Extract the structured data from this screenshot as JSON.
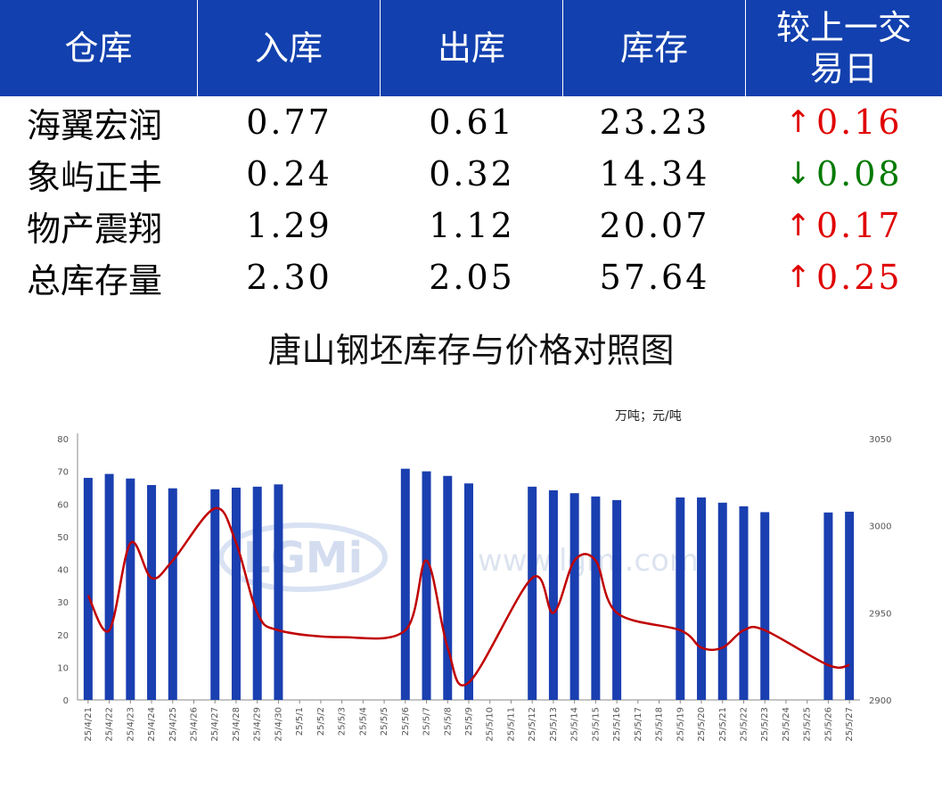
{
  "table": {
    "headers": [
      "仓库",
      "入库",
      "出库",
      "库存",
      "较上一交易日"
    ],
    "rows": [
      {
        "name": "海翼宏润",
        "in": "0.77",
        "out": "0.61",
        "stock": "23.23",
        "dir": "up",
        "change": "0.16"
      },
      {
        "name": "象屿正丰",
        "in": "0.24",
        "out": "0.32",
        "stock": "14.34",
        "dir": "down",
        "change": "0.08"
      },
      {
        "name": "物产震翔",
        "in": "1.29",
        "out": "1.12",
        "stock": "20.07",
        "dir": "up",
        "change": "0.17"
      },
      {
        "name": "总库存量",
        "in": "2.30",
        "out": "2.05",
        "stock": "57.64",
        "dir": "up",
        "change": "0.25"
      }
    ],
    "colors": {
      "header_bg": "#1240ae",
      "up": "#e00000",
      "down": "#007a00"
    }
  },
  "chart_data": {
    "type": "bar+line",
    "title": "唐山钢坯库存与价格对照图",
    "unit_label": "万吨；元/吨",
    "watermark": "LGMi www.lgmi.com",
    "categories": [
      "25/4/21",
      "25/4/22",
      "25/4/23",
      "25/4/24",
      "25/4/25",
      "25/4/26",
      "25/4/27",
      "25/4/28",
      "25/4/29",
      "25/4/30",
      "25/5/1",
      "25/5/2",
      "25/5/3",
      "25/5/4",
      "25/5/5",
      "25/5/6",
      "25/5/7",
      "25/5/8",
      "25/5/9",
      "25/5/10",
      "25/5/11",
      "25/5/12",
      "25/5/13",
      "25/5/14",
      "25/5/15",
      "25/5/16",
      "25/5/17",
      "25/5/18",
      "25/5/19",
      "25/5/20",
      "25/5/21",
      "25/5/22",
      "25/5/23",
      "25/5/24",
      "25/5/25",
      "25/5/26",
      "25/5/27"
    ],
    "series": [
      {
        "kind": "bar",
        "axis": "left",
        "color": "#1a3fb0",
        "values": [
          68.0,
          69.2,
          67.8,
          65.8,
          64.8,
          null,
          64.5,
          65.0,
          65.3,
          66.0,
          null,
          null,
          null,
          null,
          null,
          70.8,
          70.0,
          68.6,
          66.3,
          null,
          null,
          65.3,
          64.2,
          63.3,
          62.3,
          61.2,
          null,
          null,
          62.0,
          62.0,
          60.4,
          59.3,
          57.5,
          null,
          null,
          57.4,
          57.64
        ]
      },
      {
        "kind": "line",
        "axis": "right",
        "color": "#c00000",
        "values": [
          2960,
          2940,
          2990,
          2970,
          2980,
          null,
          3010,
          2990,
          2950,
          2940,
          null,
          null,
          2936,
          null,
          null,
          2940,
          2980,
          2930,
          2910,
          null,
          null,
          2970,
          2950,
          2980,
          2980,
          2950,
          null,
          null,
          2940,
          2930,
          2930,
          2940,
          2940,
          null,
          null,
          2920,
          2920
        ]
      }
    ],
    "y_left": {
      "min": 0,
      "max": 80,
      "ticks": [
        0,
        10,
        20,
        30,
        40,
        50,
        60,
        70,
        80
      ]
    },
    "y_right": {
      "min": 2900,
      "max": 3050,
      "ticks": [
        2900,
        2950,
        3000,
        3050
      ]
    },
    "grid": false
  }
}
